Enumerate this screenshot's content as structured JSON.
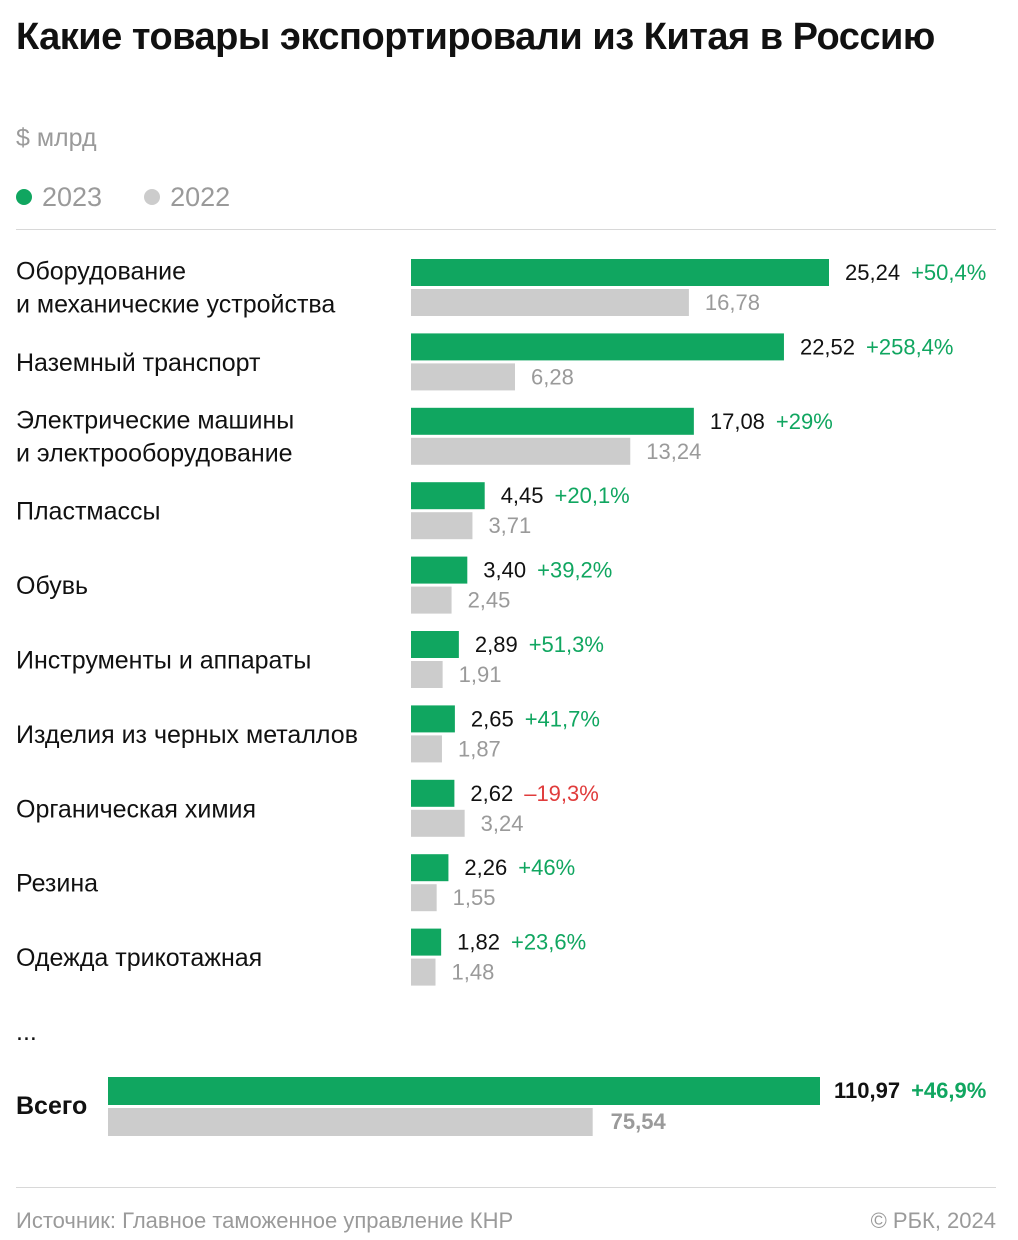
{
  "title": "Какие товары экспортировали из Китая в Россию",
  "unit": "$ млрд",
  "legend": [
    {
      "label": "2023",
      "color": "#10a660"
    },
    {
      "label": "2022",
      "color": "#cccccc"
    }
  ],
  "colors": {
    "bar_2023": "#10a660",
    "bar_2022": "#cccccc",
    "value_2022_text": "#9a9a9a",
    "positive_change": "#10a660",
    "negative_change": "#e03c3c"
  },
  "chart_data": {
    "type": "bar",
    "orientation": "horizontal",
    "categories": [
      [
        "Оборудование",
        "и механические устройства"
      ],
      [
        "Наземный транспорт"
      ],
      [
        "Электрические машины",
        "и электрооборудование"
      ],
      [
        "Пластмассы"
      ],
      [
        "Обувь"
      ],
      [
        "Инструменты и аппараты"
      ],
      [
        "Изделия из черных металлов"
      ],
      [
        "Органическая химия"
      ],
      [
        "Резина"
      ],
      [
        "Одежда трикотажная"
      ]
    ],
    "series": [
      {
        "name": "2023",
        "values": [
          25.24,
          22.52,
          17.08,
          4.45,
          3.4,
          2.89,
          2.65,
          2.62,
          2.26,
          1.82
        ],
        "labels": [
          "25,24",
          "22,52",
          "17,08",
          "4,45",
          "3,40",
          "2,89",
          "2,65",
          "2,62",
          "2,26",
          "1,82"
        ]
      },
      {
        "name": "2022",
        "values": [
          16.78,
          6.28,
          13.24,
          3.71,
          2.45,
          1.91,
          1.87,
          3.24,
          1.55,
          1.48
        ],
        "labels": [
          "16,78",
          "6,28",
          "13,24",
          "3,71",
          "2,45",
          "1,91",
          "1,87",
          "3,24",
          "1,55",
          "1,48"
        ]
      }
    ],
    "changes": [
      "+50,4%",
      "+258,4%",
      "+29%",
      "+20,1%",
      "+39,2%",
      "+51,3%",
      "+41,7%",
      "–19,3%",
      "+46%",
      "+23,6%"
    ],
    "ellipsis": "...",
    "total": {
      "label": "Всего",
      "value_2023": 110.97,
      "label_2023": "110,97",
      "value_2022": 75.54,
      "label_2022": "75,54",
      "change": "+46,9%"
    },
    "xlim": [
      0,
      25.24
    ],
    "total_xlim": [
      0,
      110.97
    ]
  },
  "footer": {
    "source": "Источник: Главное таможенное управление КНР",
    "copyright": "© РБК, 2024"
  }
}
